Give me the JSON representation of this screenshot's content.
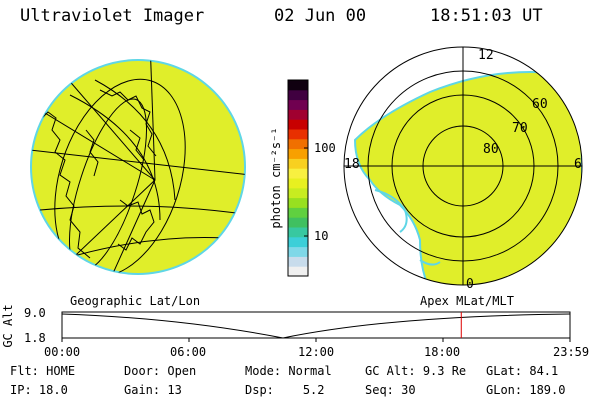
{
  "header": {
    "instrument": "Ultraviolet Imager",
    "date": "02 Jun 00",
    "time": "18:51:03 UT"
  },
  "colorbar": {
    "unit_label": "photon cm⁻²s⁻¹",
    "tick_100": "100",
    "tick_10": "10",
    "colors": [
      "#f0f0f0",
      "#c8dcec",
      "#7fd8e8",
      "#3ccfd8",
      "#38c8a0",
      "#40c060",
      "#60d040",
      "#98e020",
      "#c8ec20",
      "#e8f020",
      "#f8f040",
      "#f8d020",
      "#f8a000",
      "#f07000",
      "#e83000",
      "#c80000",
      "#a00030",
      "#700050",
      "#400040",
      "#100010"
    ],
    "fill_color": "#e0ee2a"
  },
  "geo_map": {
    "fill_color": "#e0ee2a",
    "edge_color": "#5fd6e6"
  },
  "polar_plot": {
    "labels": {
      "top": "12",
      "left": "18",
      "right": "6",
      "bottom": "0"
    },
    "rings": [
      "80",
      "70",
      "60"
    ],
    "fill_color": "#e0ee2a",
    "edge_color": "#5fd6e6"
  },
  "coord_labels": {
    "left": "Geographic Lat/Lon",
    "right": "Apex MLat/MLT"
  },
  "altitude_plot": {
    "ylabel": "GC Alt",
    "y_top": "9.0",
    "y_bottom": "1.8",
    "xticks": [
      "00:00",
      "06:00",
      "12:00",
      "18:00",
      "23:59"
    ],
    "marker_time": "18:51",
    "marker_color": "#dd0000"
  },
  "info": {
    "row1": [
      {
        "label": "Flt:",
        "value": "HOME"
      },
      {
        "label": "Door:",
        "value": "Open"
      },
      {
        "label": "Mode:",
        "value": "Normal"
      },
      {
        "label": "GC Alt:",
        "value": "9.3 Re"
      },
      {
        "label": "GLat:",
        "value": "84.1"
      }
    ],
    "row2": [
      {
        "label": "IP:",
        "value": "18.0"
      },
      {
        "label": "Gain:",
        "value": "13"
      },
      {
        "label": "Dsp:",
        "value": "5.2"
      },
      {
        "label": "Seq:",
        "value": "30"
      },
      {
        "label": "GLon:",
        "value": "189.0"
      }
    ]
  }
}
